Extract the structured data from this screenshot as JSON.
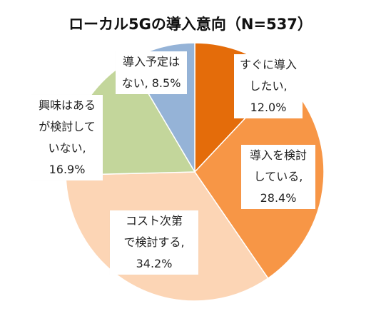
{
  "chart_data": {
    "type": "pie",
    "title": "ローカル5Gの導入意向（N=537）",
    "start_angle_deg": 0,
    "direction": "clockwise",
    "slices": [
      {
        "label": [
          "すぐに導入",
          "したい,",
          "12.0%"
        ],
        "value": 12.0,
        "color": "#E46C0A"
      },
      {
        "label": [
          "導入を検討",
          "している,",
          "28.4%"
        ],
        "value": 28.4,
        "color": "#F79646"
      },
      {
        "label": [
          "コスト次第",
          "で検討する,",
          "34.2%"
        ],
        "value": 34.2,
        "color": "#FCD5B5"
      },
      {
        "label": [
          "興味はある",
          "が検討して",
          "いない,",
          "16.9%"
        ],
        "value": 16.9,
        "color": "#C3D69B"
      },
      {
        "label": [
          "導入予定は",
          "ない, 8.5%"
        ],
        "value": 8.5,
        "color": "#95B3D7"
      }
    ]
  }
}
